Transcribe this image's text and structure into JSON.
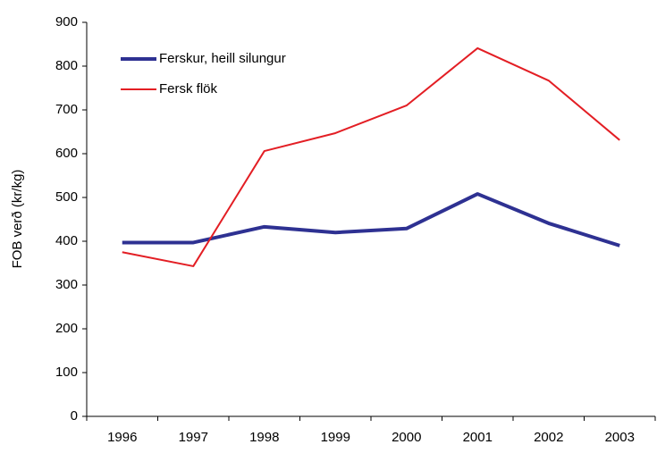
{
  "chart_data": {
    "type": "line",
    "ylabel": "FOB verð (kr/kg)",
    "categories": [
      "1996",
      "1997",
      "1998",
      "1999",
      "2000",
      "2001",
      "2002",
      "2003"
    ],
    "series": [
      {
        "name": "Ferskur, heill silungur",
        "color": "#2e3192",
        "values": [
          397,
          397,
          433,
          420,
          429,
          508,
          441,
          390
        ]
      },
      {
        "name": "Fersk flök",
        "color": "#e31e24",
        "values": [
          375,
          343,
          606,
          647,
          710,
          841,
          767,
          631
        ]
      }
    ],
    "ylim": [
      0,
      900
    ],
    "yticks": [
      0,
      100,
      200,
      300,
      400,
      500,
      600,
      700,
      800,
      900
    ],
    "grid": false,
    "legend": "upper left"
  }
}
